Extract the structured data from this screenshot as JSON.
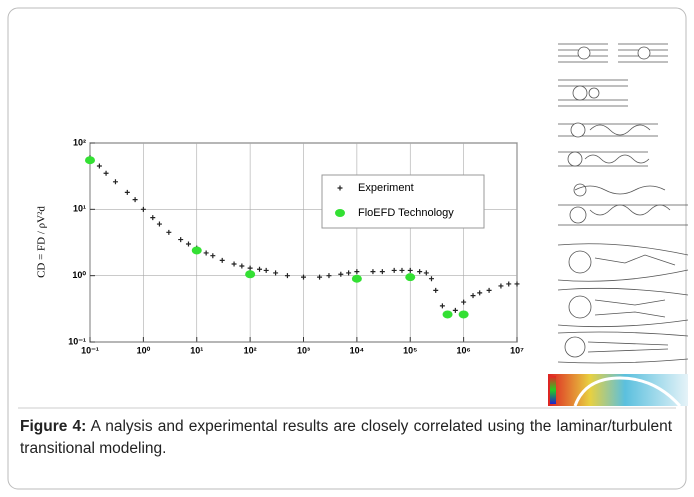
{
  "chart_data": {
    "type": "scatter",
    "y_label": "CD = FD / ρV²d",
    "xlog": true,
    "ylog": true,
    "grid": true,
    "xlim": [
      0.1,
      10000000
    ],
    "ylim": [
      0.1,
      100
    ],
    "xticks": [
      {
        "value": 0.1,
        "label": "10⁻¹"
      },
      {
        "value": 1,
        "label": "10⁰"
      },
      {
        "value": 10,
        "label": "10¹"
      },
      {
        "value": 100,
        "label": "10²"
      },
      {
        "value": 1000,
        "label": "10³"
      },
      {
        "value": 10000,
        "label": "10⁴"
      },
      {
        "value": 100000,
        "label": "10⁵"
      },
      {
        "value": 1000000,
        "label": "10⁶"
      },
      {
        "value": 10000000,
        "label": "10⁷"
      }
    ],
    "yticks": [
      {
        "value": 0.1,
        "label": "10⁻¹"
      },
      {
        "value": 1,
        "label": "10⁰"
      },
      {
        "value": 10,
        "label": "10¹"
      },
      {
        "value": 100,
        "label": "10²"
      }
    ],
    "series": [
      {
        "name": "Experiment",
        "color": "#222222",
        "marker": "plus",
        "x": [
          0.1,
          0.15,
          0.2,
          0.3,
          0.5,
          0.7,
          1,
          1.5,
          2,
          3,
          5,
          7,
          10,
          15,
          20,
          30,
          50,
          70,
          100,
          150,
          200,
          300,
          500,
          1000,
          2000,
          3000,
          5000,
          7000,
          10000,
          20000,
          30000,
          50000,
          70000,
          100000,
          150000,
          200000,
          250000,
          300000,
          400000,
          500000,
          700000,
          1000000,
          1500000,
          2000000,
          3000000,
          5000000,
          7000000,
          10000000
        ],
        "values": [
          60,
          45,
          35,
          26,
          18,
          14,
          10,
          7.5,
          6,
          4.5,
          3.5,
          3,
          2.6,
          2.2,
          2,
          1.7,
          1.5,
          1.4,
          1.3,
          1.25,
          1.2,
          1.1,
          1,
          0.95,
          0.95,
          1,
          1.05,
          1.1,
          1.15,
          1.15,
          1.15,
          1.2,
          1.2,
          1.2,
          1.15,
          1.1,
          0.9,
          0.6,
          0.35,
          0.27,
          0.3,
          0.4,
          0.5,
          0.55,
          0.6,
          0.7,
          0.75,
          0.75
        ]
      },
      {
        "name": "FloEFD Technology",
        "color": "#33e033",
        "marker": "ellipse",
        "x": [
          0.1,
          10,
          100,
          10000,
          100000,
          500000,
          1000000
        ],
        "values": [
          55,
          2.4,
          1.05,
          0.9,
          0.95,
          0.26,
          0.26
        ]
      }
    ]
  },
  "caption": {
    "label": "Figure 4:",
    "text": " A nalysis and experimental results are closely correlated using the laminar/turbulent transitional modeling."
  }
}
